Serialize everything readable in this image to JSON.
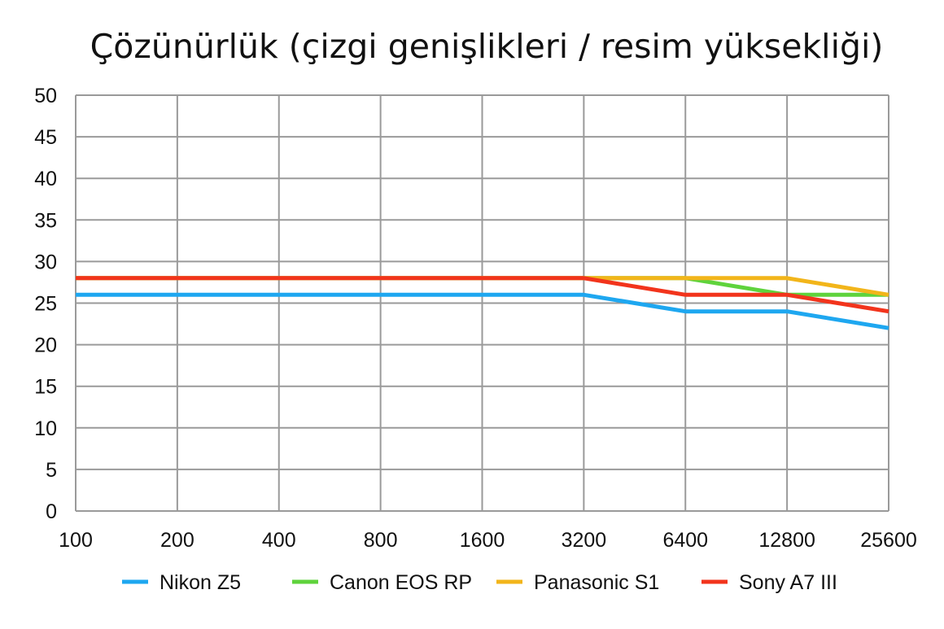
{
  "chart_data": {
    "type": "line",
    "title": "Çözünürlük (çizgi genişlikleri / resim yüksekliği)",
    "xlabel": "",
    "ylabel": "",
    "categories": [
      "100",
      "200",
      "400",
      "800",
      "1600",
      "3200",
      "6400",
      "12800",
      "25600"
    ],
    "y_ticks": [
      "0",
      "5",
      "10",
      "15",
      "20",
      "25",
      "30",
      "35",
      "40",
      "45",
      "50"
    ],
    "ylim": [
      0,
      50
    ],
    "grid": true,
    "legend_position": "bottom",
    "series": [
      {
        "name": "Nikon Z5",
        "color": "#1ea7f0",
        "values": [
          26,
          26,
          26,
          26,
          26,
          26,
          24,
          24,
          22
        ]
      },
      {
        "name": "Canon EOS RP",
        "color": "#5fd33c",
        "values": [
          28,
          28,
          28,
          28,
          28,
          28,
          28,
          26,
          26
        ]
      },
      {
        "name": "Panasonic S1",
        "color": "#f2b51a",
        "values": [
          28,
          28,
          28,
          28,
          28,
          28,
          28,
          28,
          26
        ]
      },
      {
        "name": "Sony A7 III",
        "color": "#f2341c",
        "values": [
          28,
          28,
          28,
          28,
          28,
          28,
          26,
          26,
          24
        ]
      }
    ]
  }
}
